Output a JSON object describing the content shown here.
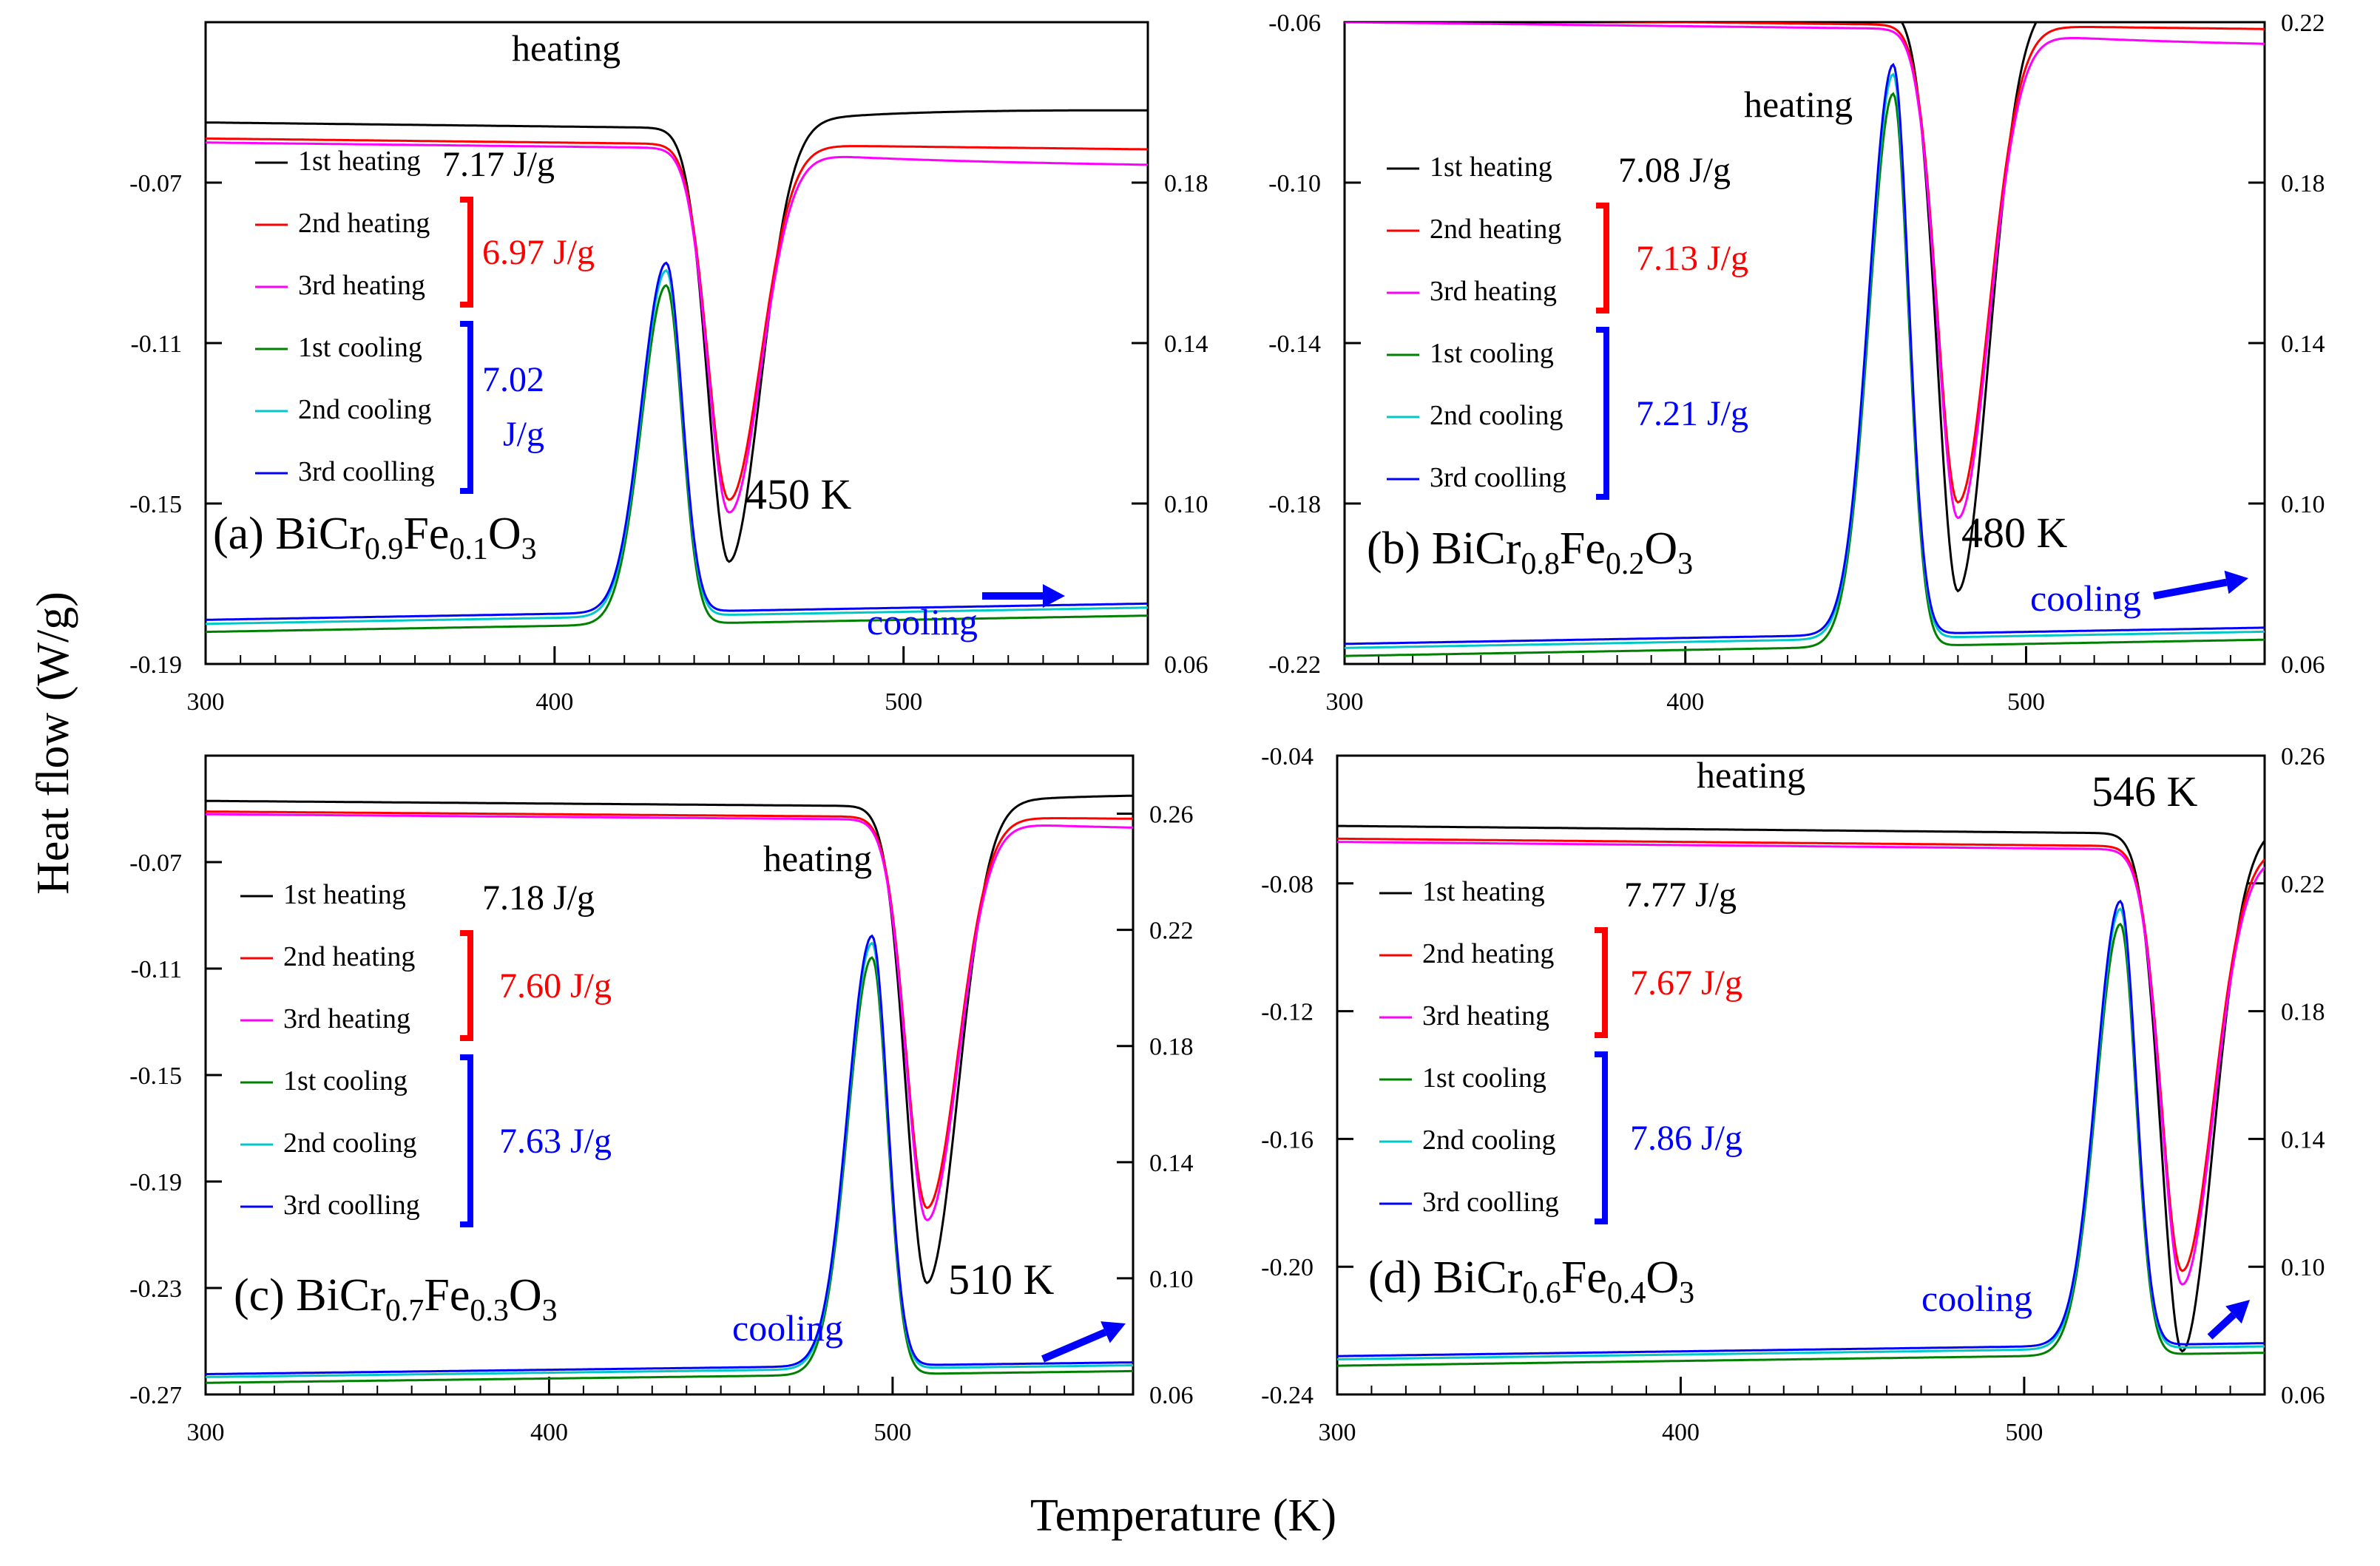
{
  "figure": {
    "ylabel": "Heat flow (W/g)",
    "xlabel": "Temperature (K)"
  },
  "legend_labels": [
    "1st heating",
    "2nd heating",
    "3rd heating",
    "1st cooling",
    "2nd cooling",
    "3rd coolling"
  ],
  "colors": {
    "h1": "#000000",
    "h2": "#ff0000",
    "h3": "#ff00ff",
    "c1": "#008000",
    "c2": "#00c8c8",
    "c3": "#0000ff",
    "heat_bracket": "#ff0000",
    "cool_bracket": "#0000ff"
  },
  "chart_data": [
    {
      "id": "a",
      "type": "line",
      "title_prefix": "(a) BiCr",
      "composition": [
        "0.9",
        "Fe",
        "0.1",
        "O",
        "3"
      ],
      "x_ticks": [
        "300",
        "400",
        "500"
      ],
      "xlim": [
        300,
        570
      ],
      "y_left_ticks": [
        "-0.07",
        "-0.11",
        "-0.15",
        "-0.19"
      ],
      "ylim_left": [
        -0.19,
        -0.03
      ],
      "y_right_ticks": [
        "0.18",
        "0.14",
        "0.10",
        "0.06"
      ],
      "ylim_right": [
        0.06,
        0.22
      ],
      "heating_label": "heating",
      "cooling_label": "cooling",
      "peak_label": "450 K",
      "enthalpy_1st_heating": "7.17 J/g",
      "enthalpy_heating": "6.97 J/g",
      "enthalpy_cooling": [
        "7.02",
        "J/g"
      ],
      "heating_peak_K": 450,
      "cooling_peak_K": 432,
      "heating_baseline": -0.055,
      "heating_min": -0.163,
      "cooling_baseline": 0.07,
      "cooling_peak": 0.157
    },
    {
      "id": "b",
      "type": "line",
      "title_prefix": "(b) BiCr",
      "composition": [
        "0.8",
        "Fe",
        "0.2",
        "O",
        "3"
      ],
      "x_ticks": [
        "300",
        "400",
        "500"
      ],
      "xlim": [
        300,
        570
      ],
      "y_left_ticks": [
        "-0.06",
        "-0.10",
        "-0.14",
        "-0.18",
        "-0.22"
      ],
      "ylim_left": [
        -0.22,
        -0.06
      ],
      "y_right_ticks": [
        "0.22",
        "0.18",
        "0.14",
        "0.10",
        "0.06"
      ],
      "ylim_right": [
        0.06,
        0.22
      ],
      "heating_label": "heating",
      "cooling_label": "cooling",
      "peak_label": "480 K",
      "enthalpy_1st_heating": "7.08 J/g",
      "enthalpy_heating": "7.13 J/g",
      "enthalpy_cooling": [
        "7.21 J/g"
      ],
      "heating_peak_K": 480,
      "cooling_peak_K": 461,
      "heating_baseline": -0.055,
      "heating_min": -0.2,
      "cooling_baseline": 0.064,
      "cooling_peak": 0.206
    },
    {
      "id": "c",
      "type": "line",
      "title_prefix": "(c) BiCr",
      "composition": [
        "0.7",
        "Fe",
        "0.3",
        "O",
        "3"
      ],
      "x_ticks": [
        "300",
        "400",
        "500"
      ],
      "xlim": [
        300,
        570
      ],
      "y_left_ticks": [
        "-0.07",
        "-0.11",
        "-0.15",
        "-0.19",
        "-0.23",
        "-0.27"
      ],
      "ylim_left": [
        -0.27,
        -0.03
      ],
      "y_right_ticks": [
        "0.26",
        "0.22",
        "0.18",
        "0.14",
        "0.10",
        "0.06"
      ],
      "ylim_right": [
        0.06,
        0.28
      ],
      "heating_label": "heating",
      "cooling_label": "cooling",
      "peak_label": "510 K",
      "enthalpy_1st_heating": "7.18 J/g",
      "enthalpy_heating": "7.60 J/g",
      "enthalpy_cooling": [
        "7.63 J/g"
      ],
      "heating_peak_K": 510,
      "cooling_peak_K": 494,
      "heating_baseline": -0.047,
      "heating_min": -0.226,
      "cooling_baseline": 0.066,
      "cooling_peak": 0.214
    },
    {
      "id": "d",
      "type": "line",
      "title_prefix": "(d) BiCr",
      "composition": [
        "0.6",
        "Fe",
        "0.4",
        "O",
        "3"
      ],
      "x_ticks": [
        "300",
        "400",
        "500"
      ],
      "xlim": [
        300,
        570
      ],
      "y_left_ticks": [
        "-0.04",
        "-0.08",
        "-0.12",
        "-0.16",
        "-0.20",
        "-0.24"
      ],
      "ylim_left": [
        -0.24,
        -0.04
      ],
      "y_right_ticks": [
        "0.26",
        "0.22",
        "0.18",
        "0.14",
        "0.10",
        "0.06"
      ],
      "ylim_right": [
        0.06,
        0.26
      ],
      "heating_label": "heating",
      "cooling_label": "cooling",
      "peak_label": "546 K",
      "enthalpy_1st_heating": "7.77 J/g",
      "enthalpy_heating": "7.67 J/g",
      "enthalpy_cooling": [
        "7.86 J/g"
      ],
      "heating_peak_K": 546,
      "cooling_peak_K": 528,
      "heating_baseline": -0.062,
      "heating_min": -0.224,
      "cooling_baseline": 0.071,
      "cooling_peak": 0.21
    }
  ]
}
